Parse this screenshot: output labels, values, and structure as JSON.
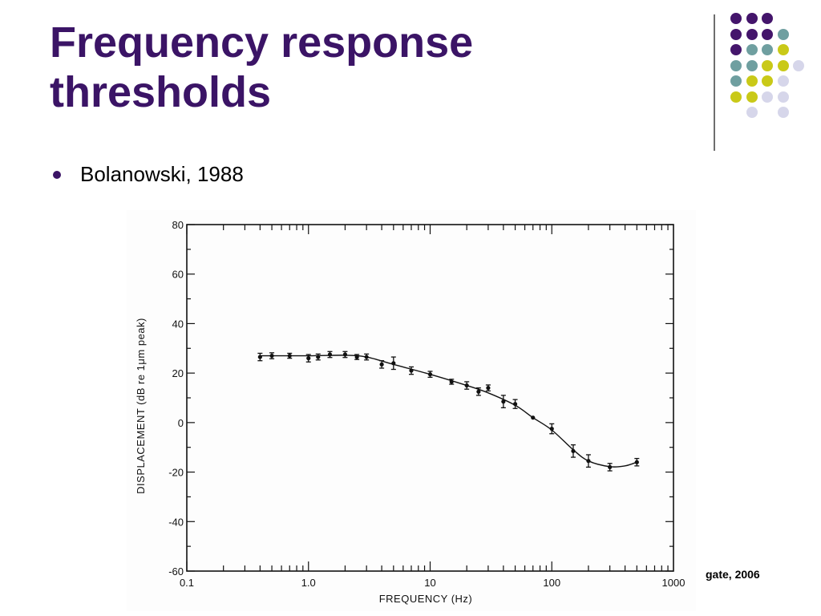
{
  "slide": {
    "title_line1": "Frequency response",
    "title_line2": "thresholds",
    "bullets": [
      "Bolanowski, 1988"
    ],
    "credit": "gate, 2006",
    "colors": {
      "title": "#3b1466",
      "dot_purple": "#44156b",
      "dot_teal": "#6f9fa0",
      "dot_yellow": "#c9c918",
      "dot_lavender": "#d6d6ea"
    }
  },
  "decor": {
    "dot_grid": [
      [
        "purple",
        "purple",
        "purple",
        null,
        null
      ],
      [
        "purple",
        "purple",
        "purple",
        "teal",
        null
      ],
      [
        "purple",
        "teal",
        "teal",
        "yellow",
        null
      ],
      [
        "teal",
        "teal",
        "yellow",
        "yellow",
        "lavender"
      ],
      [
        "teal",
        "yellow",
        "yellow",
        "lavender",
        null
      ],
      [
        "yellow",
        "yellow",
        "lavender",
        "lavender",
        null
      ],
      [
        null,
        "lavender",
        null,
        "lavender",
        null
      ]
    ]
  },
  "chart_data": {
    "type": "line",
    "xlabel": "FREQUENCY (Hz)",
    "ylabel": "DISPLACEMENT (dB re 1μm peak)",
    "x_scale": "log",
    "xlim": [
      0.1,
      1000
    ],
    "ylim": [
      -60,
      80
    ],
    "x_ticks": [
      "0.1",
      "1.0",
      "10",
      "100",
      "1000"
    ],
    "y_ticks": [
      "80",
      "60",
      "40",
      "20",
      "0",
      "-20",
      "-40",
      "-60"
    ],
    "grid": false,
    "series": [
      {
        "points": [
          {
            "x": 0.4,
            "y": 26.5,
            "err": 1.5
          },
          {
            "x": 0.5,
            "y": 27,
            "err": 1.2
          },
          {
            "x": 0.7,
            "y": 27,
            "err": 1.0
          },
          {
            "x": 1.0,
            "y": 26,
            "err": 1.5
          },
          {
            "x": 1.2,
            "y": 26.5,
            "err": 1.2
          },
          {
            "x": 1.5,
            "y": 27.5,
            "err": 1.2
          },
          {
            "x": 2.0,
            "y": 27.5,
            "err": 1.2
          },
          {
            "x": 2.5,
            "y": 26.5,
            "err": 1.0
          },
          {
            "x": 3.0,
            "y": 26.5,
            "err": 1.2
          },
          {
            "x": 4.0,
            "y": 23.5,
            "err": 1.5
          },
          {
            "x": 5.0,
            "y": 24,
            "err": 2.5
          },
          {
            "x": 7.0,
            "y": 21,
            "err": 1.5
          },
          {
            "x": 10,
            "y": 19.5,
            "err": 1.2
          },
          {
            "x": 15,
            "y": 16.5,
            "err": 1.0
          },
          {
            "x": 20,
            "y": 15,
            "err": 1.5
          },
          {
            "x": 25,
            "y": 12.5,
            "err": 1.5
          },
          {
            "x": 30,
            "y": 14,
            "err": 1.2
          },
          {
            "x": 40,
            "y": 8.5,
            "err": 2.5
          },
          {
            "x": 50,
            "y": 7.5,
            "err": 1.8
          },
          {
            "x": 70,
            "y": 2,
            "err": 0
          },
          {
            "x": 100,
            "y": -2.5,
            "err": 2.0
          },
          {
            "x": 150,
            "y": -11.5,
            "err": 2.5
          },
          {
            "x": 200,
            "y": -15.5,
            "err": 2.5
          },
          {
            "x": 300,
            "y": -18,
            "err": 1.5
          },
          {
            "x": 500,
            "y": -16,
            "err": 1.5
          }
        ],
        "curve": [
          {
            "x": 0.4,
            "y": 27
          },
          {
            "x": 1.0,
            "y": 27
          },
          {
            "x": 2.0,
            "y": 27.2
          },
          {
            "x": 3.0,
            "y": 26.5
          },
          {
            "x": 5.0,
            "y": 23.5
          },
          {
            "x": 10,
            "y": 19.5
          },
          {
            "x": 20,
            "y": 15
          },
          {
            "x": 30,
            "y": 12
          },
          {
            "x": 50,
            "y": 7
          },
          {
            "x": 70,
            "y": 2
          },
          {
            "x": 100,
            "y": -3
          },
          {
            "x": 150,
            "y": -11
          },
          {
            "x": 200,
            "y": -15.5
          },
          {
            "x": 300,
            "y": -17.8
          },
          {
            "x": 400,
            "y": -17.5
          },
          {
            "x": 500,
            "y": -16
          }
        ]
      }
    ]
  }
}
